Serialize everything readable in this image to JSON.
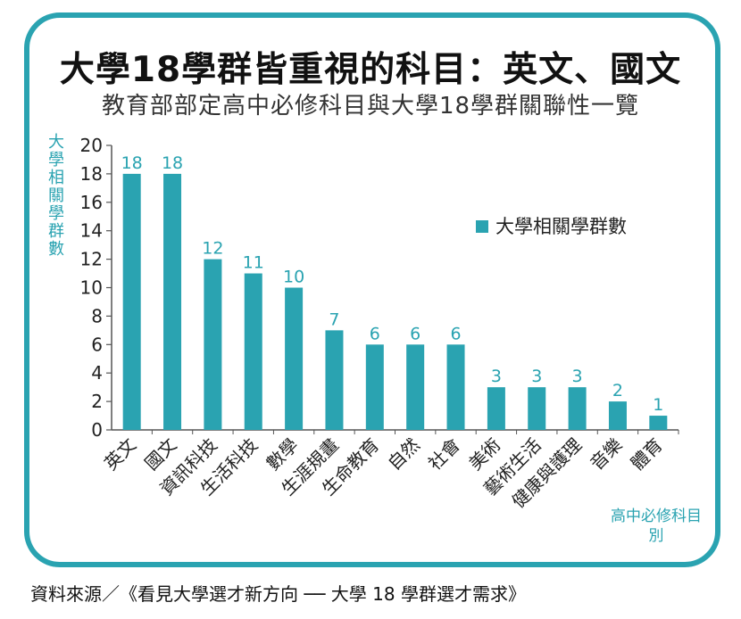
{
  "page": {
    "title": "大學18學群皆重視的科目：英文、國文",
    "subtitle": "教育部部定高中必修科目與大學18學群關聯性一覽",
    "source": "資料來源／《看見大學選才新方向 ── 大學 18 學群選才需求》"
  },
  "chart_data": {
    "type": "bar",
    "title": "大學18學群皆重視的科目：英文、國文",
    "subtitle": "教育部部定高中必修科目與大學18學群關聯性一覽",
    "ylabel": "大學相關學群數",
    "xlabel": "高中必修科目別",
    "ylim": [
      0,
      20
    ],
    "yticks": [
      0,
      2,
      4,
      6,
      8,
      10,
      12,
      14,
      16,
      18,
      20
    ],
    "categories": [
      "英文",
      "國文",
      "資訊科技",
      "生活科技",
      "數學",
      "生涯規畫",
      "生命教育",
      "自然",
      "社會",
      "美術",
      "藝術生活",
      "健康與護理",
      "音樂",
      "體育"
    ],
    "series": [
      {
        "name": "大學相關學群數",
        "values": [
          18,
          18,
          12,
          11,
          10,
          7,
          6,
          6,
          6,
          3,
          3,
          3,
          2,
          1
        ]
      }
    ],
    "legend_position": "top-right",
    "grid": false,
    "color": "#2aa3b1",
    "label_color": "#2aa3b1"
  }
}
